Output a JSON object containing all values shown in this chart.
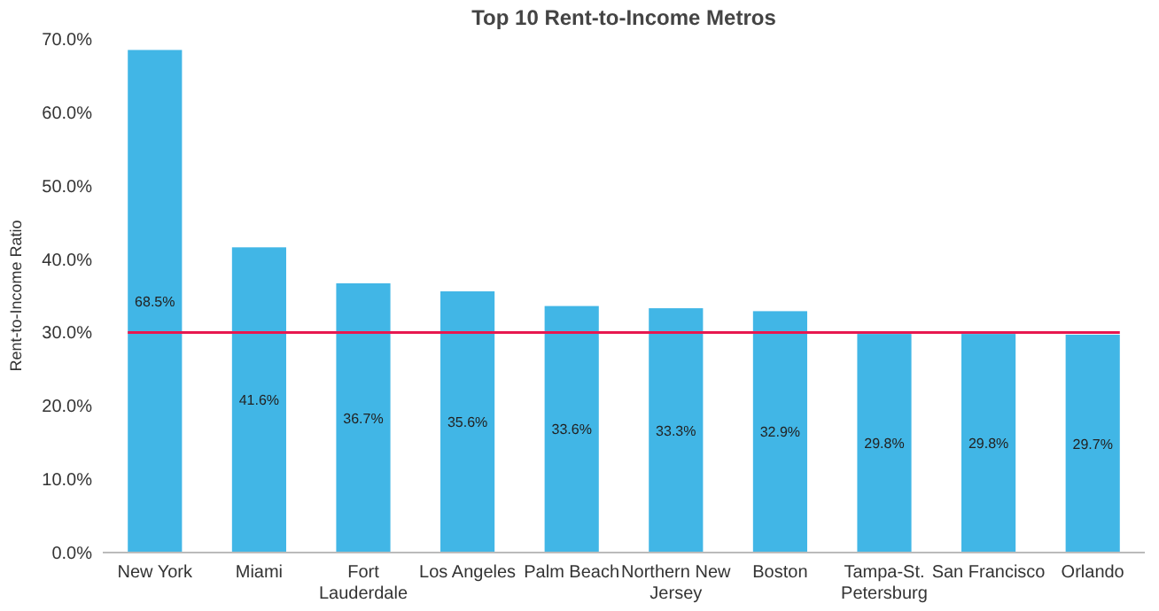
{
  "chart_data": {
    "type": "bar",
    "title": "Top 10 Rent-to-Income Metros",
    "ylabel": "Rent-to-Income Ratio",
    "categories": [
      "New York",
      "Miami",
      "Fort Lauderdale",
      "Los Angeles",
      "Palm Beach",
      "Northern New Jersey",
      "Boston",
      "Tampa-St. Petersburg",
      "San Francisco",
      "Orlando"
    ],
    "values": [
      68.5,
      41.6,
      36.7,
      35.6,
      33.6,
      33.3,
      32.9,
      29.8,
      29.8,
      29.7
    ],
    "value_labels": [
      "68.5%",
      "41.6%",
      "36.7%",
      "35.6%",
      "33.6%",
      "33.3%",
      "32.9%",
      "29.8%",
      "29.8%",
      "29.7%"
    ],
    "color": "#41b6e6",
    "ylim": [
      0,
      70
    ],
    "yticks": [
      {
        "value": 0,
        "label": "0.0%"
      },
      {
        "value": 10,
        "label": "10.0%"
      },
      {
        "value": 20,
        "label": "20.0%"
      },
      {
        "value": 30,
        "label": "30.0%"
      },
      {
        "value": 40,
        "label": "40.0%"
      },
      {
        "value": 50,
        "label": "50.0%"
      },
      {
        "value": 60,
        "label": "60.0%"
      },
      {
        "value": 70,
        "label": "70.0%"
      }
    ],
    "ref_lines": [
      {
        "axis": "y",
        "value": 30,
        "color": "#e8174f"
      }
    ],
    "grid": false
  }
}
